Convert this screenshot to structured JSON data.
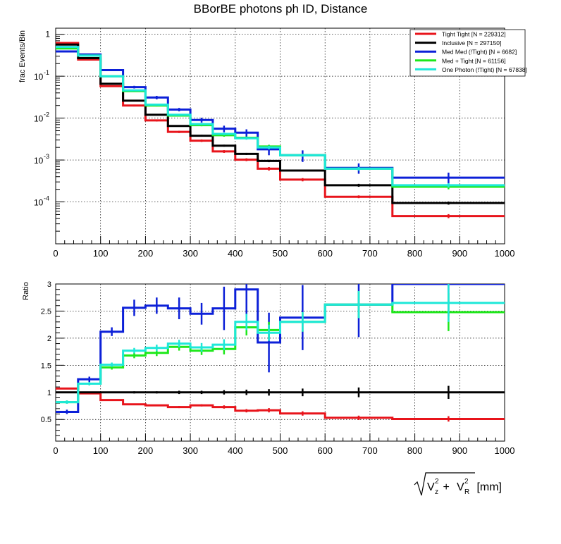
{
  "chart_data": [
    {
      "type": "line",
      "title": "BBorBE photons ph ID, Distance",
      "ylabel": "frac Events/Bin",
      "xlabel": "",
      "y_scale": "log",
      "xlim": [
        0,
        1000
      ],
      "ylim": [
        1e-05,
        1.4
      ],
      "x_ticks": [
        "0",
        "100",
        "200",
        "300",
        "400",
        "500",
        "600",
        "700",
        "800",
        "900",
        "1000"
      ],
      "y_tick_labels": [
        {
          "value": 1,
          "base": "1",
          "exp": ""
        },
        {
          "value": 0.1,
          "base": "10",
          "exp": "-1"
        },
        {
          "value": 0.01,
          "base": "10",
          "exp": "-2"
        },
        {
          "value": 0.001,
          "base": "10",
          "exp": "-3"
        },
        {
          "value": 0.0001,
          "base": "10",
          "exp": "-4"
        }
      ],
      "grid": true,
      "legend_position": "top-right",
      "bin_edges": [
        0,
        50,
        100,
        150,
        200,
        250,
        300,
        350,
        400,
        450,
        500,
        600,
        750,
        1000
      ],
      "series": [
        {
          "name": "Tight Tight [N = 229312]",
          "color": "#e8141b",
          "values": [
            0.62,
            0.25,
            0.058,
            0.02,
            0.0088,
            0.0047,
            0.0029,
            0.0016,
            0.00102,
            0.00062,
            0.00034,
            0.000133,
            4.6e-05
          ],
          "errors": [
            0.02,
            0.01,
            0.002,
            0.001,
            0.0005,
            0.0003,
            0.0002,
            0.00012,
            8e-05,
            6e-05,
            3e-05,
            1e-05,
            5e-06
          ]
        },
        {
          "name": "Inclusive [N = 297150]",
          "color": "#000000",
          "values": [
            0.57,
            0.27,
            0.066,
            0.026,
            0.012,
            0.0065,
            0.0038,
            0.0022,
            0.0014,
            0.00095,
            0.00056,
            0.00025,
            9.4e-05
          ],
          "errors": [
            0.02,
            0.01,
            0.002,
            0.001,
            0.0005,
            0.0003,
            0.0002,
            0.00012,
            8e-05,
            6e-05,
            3e-05,
            2e-05,
            8e-06
          ]
        },
        {
          "name": "Med Med (!Tight) [N = 6682]",
          "color": "#0c20d8",
          "values": [
            0.39,
            0.33,
            0.14,
            0.055,
            0.031,
            0.016,
            0.009,
            0.0056,
            0.0045,
            0.0018,
            0.0013,
            0.00065,
            0.00038
          ],
          "errors": [
            0.02,
            0.015,
            0.008,
            0.004,
            0.003,
            0.0015,
            0.0012,
            0.001,
            0.0009,
            0.0005,
            0.0004,
            0.00018,
            0.00012
          ]
        },
        {
          "name": "Med + Tight [N = 61156]",
          "color": "#1ee81a",
          "values": [
            0.46,
            0.31,
            0.1,
            0.044,
            0.02,
            0.0115,
            0.0068,
            0.0039,
            0.0034,
            0.0021,
            0.0013,
            0.00062,
            0.00023
          ],
          "errors": [
            0.02,
            0.01,
            0.004,
            0.002,
            0.001,
            0.0006,
            0.0004,
            0.0003,
            0.00025,
            0.0002,
            0.0001,
            6e-05,
            3e-05
          ]
        },
        {
          "name": "One Photon (!Tight) [N = 67838]",
          "color": "#1de8d8",
          "values": [
            0.5,
            0.31,
            0.1,
            0.046,
            0.021,
            0.012,
            0.0072,
            0.0042,
            0.0033,
            0.002,
            0.0013,
            0.00062,
            0.00025
          ],
          "errors": [
            0.02,
            0.01,
            0.004,
            0.002,
            0.001,
            0.0006,
            0.0004,
            0.0003,
            0.00025,
            0.0002,
            0.0001,
            6e-05,
            3e-05
          ]
        }
      ]
    },
    {
      "type": "line",
      "title": "",
      "ylabel": "Ratio",
      "xlabel": "",
      "y_scale": "linear",
      "xlim": [
        0,
        1000
      ],
      "ylim": [
        0.1,
        3
      ],
      "x_ticks": [
        "0",
        "100",
        "200",
        "300",
        "400",
        "500",
        "600",
        "700",
        "800",
        "900",
        "1000"
      ],
      "y_ticks": [
        "0.5",
        "1",
        "1.5",
        "2",
        "2.5",
        "3"
      ],
      "grid": true,
      "bin_edges": [
        0,
        50,
        100,
        150,
        200,
        250,
        300,
        350,
        400,
        450,
        500,
        600,
        750,
        1000
      ],
      "series": [
        {
          "name": "Tight Tight",
          "color": "#e8141b",
          "values": [
            1.07,
            0.98,
            0.86,
            0.78,
            0.76,
            0.73,
            0.76,
            0.73,
            0.66,
            0.67,
            0.61,
            0.53,
            0.51
          ],
          "errors": [
            0.01,
            0.01,
            0.01,
            0.01,
            0.01,
            0.02,
            0.02,
            0.03,
            0.03,
            0.04,
            0.04,
            0.04,
            0.05
          ]
        },
        {
          "name": "Inclusive",
          "color": "#000000",
          "values": [
            1.0,
            1.0,
            1.0,
            1.0,
            1.0,
            1.0,
            1.0,
            1.0,
            1.0,
            1.0,
            1.0,
            1.0,
            1.0
          ],
          "errors": [
            0.01,
            0.01,
            0.01,
            0.02,
            0.02,
            0.03,
            0.03,
            0.04,
            0.05,
            0.06,
            0.07,
            0.09,
            0.12
          ]
        },
        {
          "name": "Med Med (!Tight)",
          "color": "#0c20d8",
          "values": [
            0.64,
            1.24,
            2.12,
            2.56,
            2.6,
            2.55,
            2.45,
            2.55,
            2.9,
            1.92,
            2.38,
            2.62,
            3.0
          ],
          "errors": [
            0.04,
            0.05,
            0.08,
            0.15,
            0.15,
            0.2,
            0.2,
            0.4,
            0.5,
            0.55,
            0.6,
            0.6,
            0.6
          ]
        },
        {
          "name": "Med + Tight",
          "color": "#1ee81a",
          "values": [
            0.82,
            1.16,
            1.46,
            1.68,
            1.73,
            1.84,
            1.77,
            1.8,
            2.2,
            2.15,
            2.3,
            2.62,
            2.48
          ],
          "errors": [
            0.03,
            0.03,
            0.04,
            0.05,
            0.06,
            0.07,
            0.08,
            0.1,
            0.15,
            0.15,
            0.18,
            0.25,
            0.35
          ]
        },
        {
          "name": "One Photon (!Tight)",
          "color": "#1de8d8",
          "values": [
            0.82,
            1.16,
            1.51,
            1.77,
            1.82,
            1.9,
            1.83,
            1.88,
            2.3,
            2.1,
            2.3,
            2.62,
            2.65
          ],
          "errors": [
            0.03,
            0.03,
            0.04,
            0.05,
            0.06,
            0.07,
            0.08,
            0.1,
            0.15,
            0.15,
            0.18,
            0.25,
            0.35
          ]
        }
      ]
    }
  ],
  "x_axis_title": {
    "radicand_1": "V",
    "sup_1": "2",
    "sub_1": "z",
    "plus": " + ",
    "radicand_2": "V",
    "sup_2": "2",
    "sub_2": "R",
    "unit": " [mm]"
  }
}
